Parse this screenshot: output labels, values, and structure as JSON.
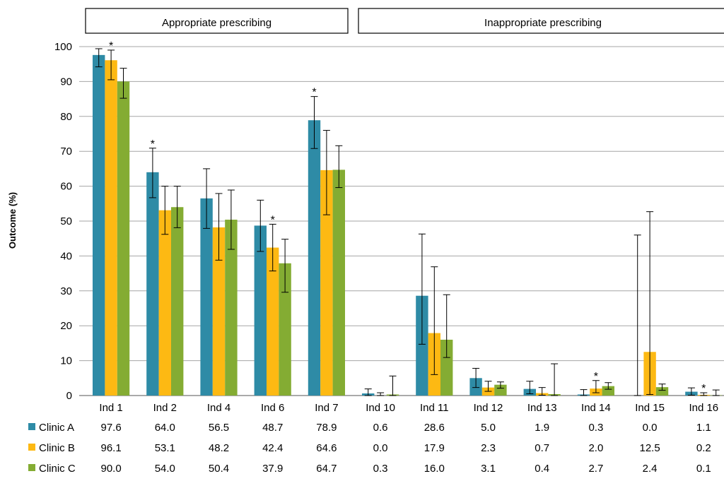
{
  "chart_data": {
    "type": "bar",
    "groups": [
      {
        "label": "Appropriate prescribing",
        "first_category": 0,
        "last_category": 4
      },
      {
        "label": "Inappropriate prescribing",
        "first_category": 5,
        "last_category": 11
      }
    ],
    "categories": [
      "Ind 1",
      "Ind 2",
      "Ind 4",
      "Ind 6",
      "Ind 7",
      "Ind 10",
      "Ind 11",
      "Ind 12",
      "Ind 13",
      "Ind 14",
      "Ind 15",
      "Ind 16"
    ],
    "series": [
      {
        "name": "Clinic A",
        "color": "#2E8BA6",
        "values": [
          97.6,
          64.0,
          56.5,
          48.7,
          78.9,
          0.6,
          28.6,
          5.0,
          1.9,
          0.3,
          0.0,
          1.1
        ],
        "labels": [
          "97.6",
          "64.0",
          "56.5",
          "48.7",
          "78.9",
          "0.6",
          "28.6",
          "5.0",
          "1.9",
          "0.3",
          "0.0",
          "1.1"
        ],
        "err_low": [
          94.2,
          56.7,
          47.9,
          41.3,
          70.8,
          0.0,
          14.7,
          2.3,
          0.5,
          0.0,
          0.0,
          0.1
        ],
        "err_high": [
          99.4,
          70.9,
          65.0,
          56.0,
          85.7,
          1.9,
          46.3,
          7.8,
          4.1,
          1.7,
          46.0,
          2.2
        ]
      },
      {
        "name": "Clinic B",
        "color": "#FDB913",
        "values": [
          96.1,
          53.1,
          48.2,
          42.4,
          64.6,
          0.0,
          17.9,
          2.3,
          0.7,
          2.0,
          12.5,
          0.2
        ],
        "labels": [
          "96.1",
          "53.1",
          "48.2",
          "42.4",
          "64.6",
          "0.0",
          "17.9",
          "2.3",
          "0.7",
          "2.0",
          "12.5",
          "0.2"
        ],
        "err_low": [
          90.5,
          46.2,
          38.8,
          35.7,
          51.8,
          0.0,
          6.0,
          1.2,
          0.1,
          0.8,
          0.3,
          0.0
        ],
        "err_high": [
          99.0,
          60.0,
          57.9,
          49.1,
          76.0,
          0.8,
          36.9,
          4.1,
          2.3,
          4.3,
          52.7,
          0.8
        ]
      },
      {
        "name": "Clinic C",
        "color": "#84AC33",
        "values": [
          90.0,
          54.0,
          50.4,
          37.9,
          64.7,
          0.3,
          16.0,
          3.1,
          0.4,
          2.7,
          2.4,
          0.1
        ],
        "labels": [
          "90.0",
          "54.0",
          "50.4",
          "37.9",
          "64.7",
          "0.3",
          "16.0",
          "3.1",
          "0.4",
          "2.7",
          "2.4",
          "0.1"
        ],
        "err_low": [
          85.2,
          48.1,
          41.9,
          29.6,
          59.6,
          0.0,
          10.9,
          2.1,
          0.0,
          1.8,
          1.5,
          0.0
        ],
        "err_high": [
          93.8,
          60.0,
          58.9,
          44.8,
          71.6,
          5.6,
          28.9,
          3.9,
          9.1,
          3.7,
          3.3,
          1.6
        ]
      }
    ],
    "significance": [
      {
        "category": 0,
        "series": 1,
        "mark": "*"
      },
      {
        "category": 1,
        "series": 0,
        "mark": "*"
      },
      {
        "category": 3,
        "series": 1,
        "mark": "*"
      },
      {
        "category": 4,
        "series": 0,
        "mark": "*"
      },
      {
        "category": 9,
        "series": 1,
        "mark": "*"
      },
      {
        "category": 11,
        "series": 1,
        "mark": "*"
      }
    ],
    "ylabel": "Outcome (%)",
    "ylim": [
      0,
      100
    ],
    "yticks": [
      0,
      10,
      20,
      30,
      40,
      50,
      60,
      70,
      80,
      90,
      100
    ],
    "grid": true,
    "legend": "bottom-left data table"
  }
}
